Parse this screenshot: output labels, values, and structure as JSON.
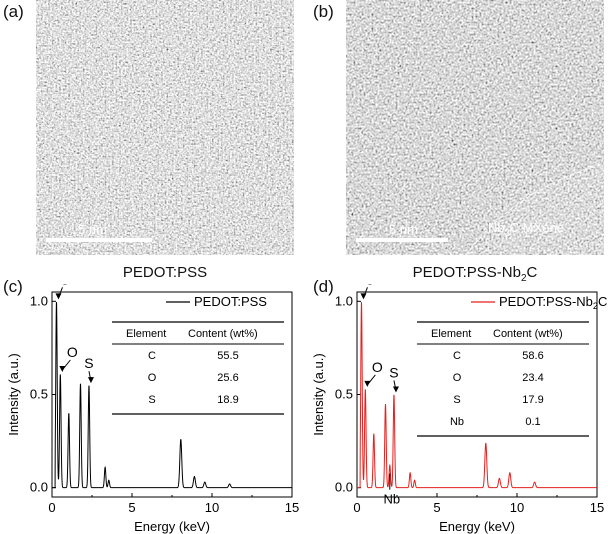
{
  "panels": {
    "a": {
      "label": "(a)",
      "caption": "PEDOT:PSS",
      "scalebar": "5 nm"
    },
    "b": {
      "label": "(b)",
      "caption": "PEDOT:PSS-Nb",
      "caption_sub": "2",
      "caption_tail": "C",
      "scalebar": "5 nm",
      "annotation_pre": "Nb",
      "annotation_sub": "2",
      "annotation_tail": "C MXene"
    },
    "c": {
      "label": "(c)"
    },
    "d": {
      "label": "(d)"
    }
  },
  "chart_data": [
    {
      "type": "line",
      "panel": "(c)",
      "xlabel": "Energy (keV)",
      "ylabel": "Intensity (a.u.)",
      "xlim": [
        0,
        15
      ],
      "ylim": [
        -0.05,
        1.05
      ],
      "xticks": [
        "0",
        "5",
        "10",
        "15"
      ],
      "yticks": [
        "0.0",
        "0.5",
        "1.0"
      ],
      "color": "#000000",
      "legend_position": "top-right",
      "series": [
        {
          "name": "PEDOT:PSS",
          "peaks": [
            [
              0.28,
              1.0
            ],
            [
              0.52,
              0.61
            ],
            [
              1.05,
              0.4
            ],
            [
              1.78,
              0.56
            ],
            [
              2.31,
              0.55
            ],
            [
              3.32,
              0.11
            ],
            [
              3.55,
              0.04
            ],
            [
              8.05,
              0.26
            ],
            [
              8.9,
              0.06
            ],
            [
              9.55,
              0.03
            ],
            [
              11.1,
              0.02
            ]
          ]
        }
      ],
      "annotations": [
        {
          "text": "C"
        },
        {
          "text": "O"
        },
        {
          "text": "S"
        }
      ],
      "table": {
        "headers": [
          "Element",
          "Content (wt%)"
        ],
        "rows": [
          [
            "C",
            "55.5"
          ],
          [
            "O",
            "25.6"
          ],
          [
            "S",
            "18.9"
          ]
        ]
      }
    },
    {
      "type": "line",
      "panel": "(d)",
      "xlabel": "Energy (keV)",
      "ylabel": "Intensity (a.u.)",
      "xlim": [
        0,
        15
      ],
      "ylim": [
        -0.05,
        1.05
      ],
      "xticks": [
        "0",
        "5",
        "10",
        "15"
      ],
      "yticks": [
        "0.0",
        "0.5",
        "1.0"
      ],
      "color": "#e5201d",
      "legend_position": "top-right",
      "series": [
        {
          "name": "PEDOT:PSS-Nb2C",
          "peaks": [
            [
              0.28,
              1.0
            ],
            [
              0.52,
              0.53
            ],
            [
              1.05,
              0.29
            ],
            [
              1.78,
              0.45
            ],
            [
              2.31,
              0.5
            ],
            [
              2.05,
              0.12
            ],
            [
              3.32,
              0.08
            ],
            [
              3.6,
              0.04
            ],
            [
              8.05,
              0.24
            ],
            [
              8.9,
              0.05
            ],
            [
              9.55,
              0.08
            ],
            [
              11.1,
              0.03
            ]
          ]
        }
      ],
      "annotations": [
        {
          "text": "C"
        },
        {
          "text": "O"
        },
        {
          "text": "S"
        },
        {
          "text": "Nb"
        }
      ],
      "table": {
        "headers": [
          "Element",
          "Content (wt%)"
        ],
        "rows": [
          [
            "C",
            "58.6"
          ],
          [
            "O",
            "23.4"
          ],
          [
            "S",
            "17.9"
          ],
          [
            "Nb",
            "0.1"
          ]
        ]
      }
    }
  ]
}
